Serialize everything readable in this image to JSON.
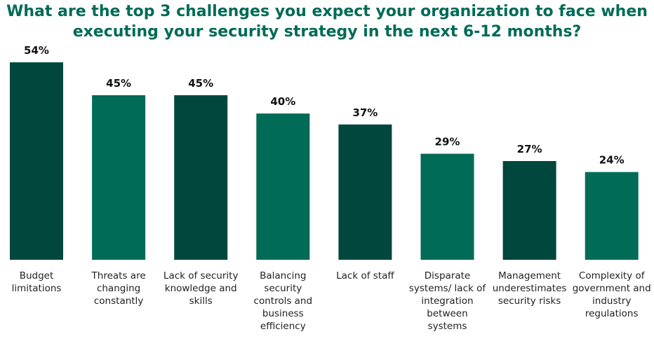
{
  "chart_data": {
    "type": "bar",
    "title": "What are the top 3 challenges you expect your organization to face when executing your security strategy in the next 6-12 months?",
    "categories": [
      "Budget limitations",
      "Threats are changing constantly",
      "Lack of security knowledge and skills",
      "Balancing security controls and business efficiency",
      "Lack of staff",
      "Disparate systems/ lack of integration between systems",
      "Management underestimates security risks",
      "Complexity of government and industry regulations"
    ],
    "values": [
      54,
      45,
      45,
      40,
      37,
      29,
      27,
      24
    ],
    "value_labels": [
      "54%",
      "45%",
      "45%",
      "40%",
      "37%",
      "29%",
      "27%",
      "24%"
    ],
    "colors": [
      "#00473e",
      "#006b57",
      "#00473e",
      "#006b57",
      "#00473e",
      "#006b57",
      "#00473e",
      "#006b57"
    ]
  }
}
